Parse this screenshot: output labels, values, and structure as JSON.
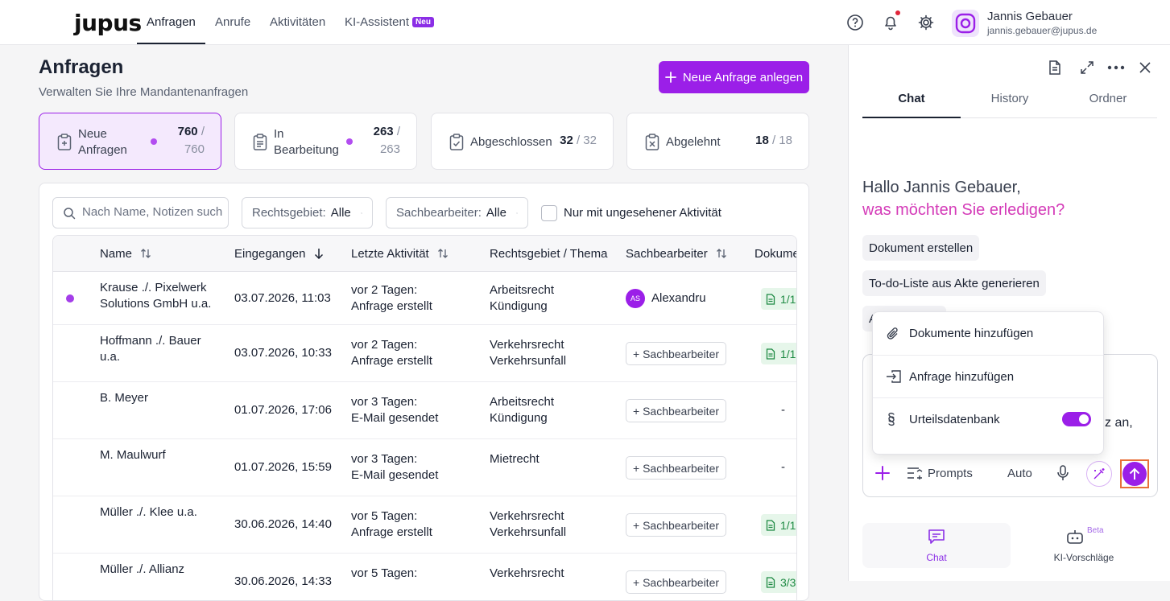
{
  "brand": {
    "logo": "jupus",
    "accent": "#9b1fe8"
  },
  "nav": {
    "items": [
      {
        "label": "Anfragen",
        "active": true
      },
      {
        "label": "Anrufe"
      },
      {
        "label": "Aktivitäten"
      },
      {
        "label": "KI-Assistent",
        "badge": "Neu"
      }
    ]
  },
  "user": {
    "name": "Jannis Gebauer",
    "email": "jannis.gebauer@jupus.de"
  },
  "page": {
    "title": "Anfragen",
    "subtitle": "Verwalten Sie Ihre Mandantenanfragen",
    "new_button": "Neue Anfrage anlegen"
  },
  "cards": [
    {
      "label_line1": "Neue",
      "label_line2": "Anfragen",
      "count": "760",
      "sep": "/",
      "total": "760",
      "active": true
    },
    {
      "label_line1": "In",
      "label_line2": "Bearbeitung",
      "count": "263",
      "sep": "/",
      "total": "263"
    },
    {
      "label": "Abgeschlossen",
      "count": "32",
      "total": "/ 32"
    },
    {
      "label": "Abgelehnt",
      "count": "18",
      "total": "/ 18"
    }
  ],
  "filters": {
    "search_placeholder": "Nach Name, Notizen suchen",
    "rechtsgebiet_label": "Rechtsgebiet:",
    "rechtsgebiet_value": "Alle",
    "sachbearbeiter_label": "Sachbearbeiter:",
    "sachbearbeiter_value": "Alle",
    "unseen_label": "Nur mit ungesehener Aktivität"
  },
  "table": {
    "headers": [
      "Name",
      "Eingegangen",
      "Letzte Aktivität",
      "Rechtsgebiet / Thema",
      "Sachbearbeiter",
      "Dokume"
    ],
    "add_assignee": "+ Sachbearbeiter",
    "rows": [
      {
        "name1": "Krause ./. Pixelwerk",
        "name2": "Solutions GmbH u.a.",
        "date": "03.07.2026, 11:03",
        "act1": "vor 2 Tagen:",
        "act2": "Anfrage erstellt",
        "area1": "Arbeitsrecht",
        "area2": "Kündigung",
        "assignee_initials": "AS",
        "assignee": "Alexandru",
        "docs": "1/1",
        "unread": true
      },
      {
        "name1": "Hoffmann ./. Bauer",
        "name2": "u.a.",
        "date": "03.07.2026, 10:33",
        "act1": "vor 2 Tagen:",
        "act2": "Anfrage erstellt",
        "area1": "Verkehrsrecht",
        "area2": "Verkehrsunfall",
        "docs": "1/1"
      },
      {
        "name1": "B. Meyer",
        "name2": "",
        "date": "01.07.2026, 17:06",
        "act1": "vor 3 Tagen:",
        "act2": "E-Mail gesendet",
        "area1": "Arbeitsrecht",
        "area2": "Kündigung",
        "docs": "-"
      },
      {
        "name1": "M. Maulwurf",
        "name2": "",
        "date": "01.07.2026, 15:59",
        "act1": "vor 3 Tagen:",
        "act2": "E-Mail gesendet",
        "area1": "Mietrecht",
        "area2": "",
        "docs": "-"
      },
      {
        "name1": "Müller ./. Klee u.a.",
        "name2": "",
        "date": "30.06.2026, 14:40",
        "act1": "vor 5 Tagen:",
        "act2": "Anfrage erstellt",
        "area1": "Verkehrsrecht",
        "area2": "Verkehrsunfall",
        "docs": "1/1"
      },
      {
        "name1": "Müller ./. Allianz",
        "name2": "",
        "date": "30.06.2026, 14:33",
        "act1": "vor 5 Tagen:",
        "act2": "",
        "area1": "Verkehrsrecht",
        "area2": "",
        "docs": "3/3"
      }
    ]
  },
  "panel": {
    "tabs": [
      "Chat",
      "History",
      "Ordner"
    ],
    "greeting1": "Hallo Jannis Gebauer,",
    "greeting2": "was möchten Sie erledigen?",
    "chips": [
      "Dokument erstellen",
      "To-do-Liste aus Akte generieren",
      "A"
    ],
    "input_partial": "z an,",
    "popup": [
      "Dokumente hinzufügen",
      "Anfrage hinzufügen",
      "Urteilsdatenbank"
    ],
    "prompts_label": "Prompts",
    "model_label": "Auto",
    "bottom_tabs": [
      {
        "label": "Chat"
      },
      {
        "label": "KI-Vorschläge",
        "badge": "Beta"
      }
    ]
  }
}
